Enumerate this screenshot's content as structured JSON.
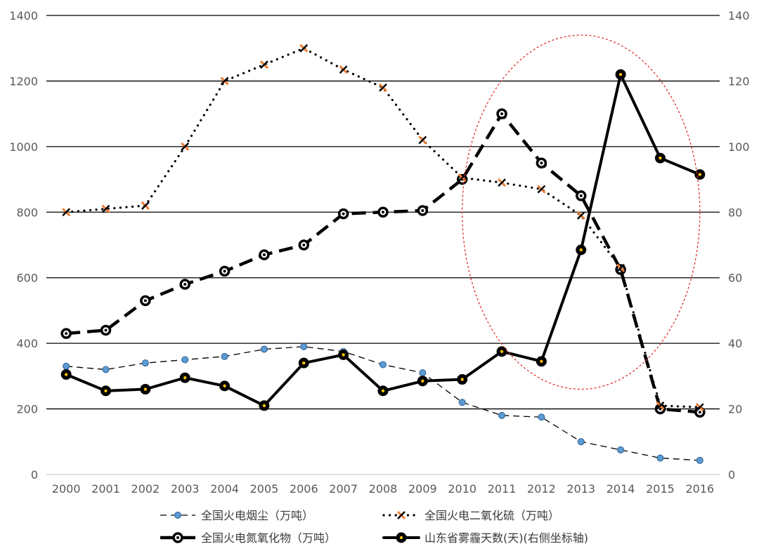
{
  "chart_data": {
    "type": "line",
    "title": "",
    "xlabel": "",
    "ylabel": "",
    "categories": [
      "2000",
      "2001",
      "2002",
      "2003",
      "2004",
      "2005",
      "2006",
      "2007",
      "2008",
      "2009",
      "2010",
      "2011",
      "2012",
      "2013",
      "2014",
      "2015",
      "2016"
    ],
    "y_left": {
      "min": 0,
      "max": 1400,
      "step": 200,
      "ticks": [
        "0",
        "200",
        "400",
        "600",
        "800",
        "1000",
        "1200",
        "1400"
      ]
    },
    "y_right": {
      "min": 0,
      "max": 140,
      "step": 20,
      "ticks": [
        "0",
        "20",
        "40",
        "60",
        "80",
        "100",
        "120",
        "140"
      ]
    },
    "grid": true,
    "legend_position": "bottom",
    "series": [
      {
        "name": "全国火电烟尘（万吨）",
        "axis": "left",
        "style": "thin-dashed",
        "color": "#000000",
        "marker_color": "#5b9bd5",
        "values": [
          330,
          320,
          340,
          350,
          360,
          382,
          390,
          375,
          335,
          310,
          220,
          180,
          175,
          100,
          75,
          50,
          43
        ]
      },
      {
        "name": "全国火电二氧化硫（万吨）",
        "axis": "left",
        "style": "dotted",
        "color": "#000000",
        "marker_color": "#ed7d31",
        "values": [
          800,
          810,
          820,
          1000,
          1200,
          1250,
          1300,
          1235,
          1180,
          1020,
          905,
          890,
          870,
          790,
          630,
          210,
          205
        ]
      },
      {
        "name": "全国火电氮氧化物（万吨）",
        "axis": "left",
        "style": "thick-dashed",
        "color": "#000000",
        "marker_color": "#000000",
        "values": [
          430,
          440,
          530,
          580,
          620,
          670,
          700,
          795,
          800,
          805,
          900,
          1100,
          950,
          850,
          625,
          200,
          190
        ]
      },
      {
        "name": "山东省雾霾天数(天)(右侧坐标轴)",
        "axis": "right",
        "style": "solid",
        "color": "#000000",
        "marker_color": "#ffc000",
        "values": [
          30.5,
          25.5,
          26,
          29.5,
          27,
          21,
          34,
          36.5,
          25.5,
          28.5,
          29,
          37.5,
          34.5,
          68.5,
          122,
          96.5,
          91.5
        ]
      }
    ],
    "annotations": [
      {
        "type": "ellipse",
        "color": "#e03030",
        "style": "dashed",
        "x_from": "2010",
        "x_to": "2016",
        "y_from_left": 260,
        "y_to_left": 1340
      }
    ]
  }
}
